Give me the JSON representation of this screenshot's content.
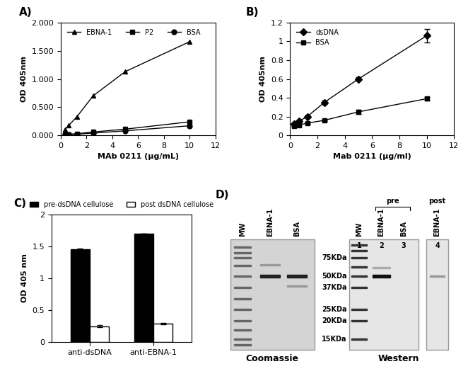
{
  "chart_data": [
    {
      "type": "line",
      "title": "A)",
      "x_label": "MAb 0211 (µg/mL)",
      "y_label": "OD 405nm",
      "x": [
        0.3125,
        0.625,
        1.25,
        2.5,
        5,
        10
      ],
      "series": [
        {
          "name": "EBNA-1",
          "color": "#000000",
          "marker": "triangle",
          "values": [
            0.1,
            0.18,
            0.33,
            0.7,
            1.13,
            1.66
          ]
        },
        {
          "name": "P2",
          "color": "#000000",
          "marker": "square",
          "values": [
            0.01,
            0.02,
            0.03,
            0.06,
            0.11,
            0.24
          ]
        },
        {
          "name": "BSA",
          "color": "#000000",
          "marker": "circle",
          "values": [
            0.01,
            0.01,
            0.02,
            0.04,
            0.08,
            0.17
          ]
        }
      ],
      "xlim": [
        0,
        12
      ],
      "xticks": [
        0,
        2,
        4,
        6,
        8,
        10,
        12
      ],
      "ylim": [
        0,
        2
      ],
      "yticks": [
        {
          "value": 0,
          "label": "0.000"
        },
        {
          "value": 0.5,
          "label": "0.500"
        },
        {
          "value": 1,
          "label": "1.000"
        },
        {
          "value": 1.5,
          "label": "1.500"
        },
        {
          "value": 2,
          "label": "2.000"
        }
      ],
      "legend": "upper left"
    },
    {
      "type": "line",
      "title": "B)",
      "x_label": "Mab 0211 (µg/ml)",
      "y_label": "OD 405nm",
      "x": [
        0.3125,
        0.625,
        1.25,
        2.5,
        5,
        10
      ],
      "series": [
        {
          "name": "dsDNA",
          "color": "#000000",
          "marker": "diamond",
          "values": [
            0.12,
            0.15,
            0.2,
            0.35,
            0.6,
            1.06
          ],
          "errors": [
            0.01,
            0.01,
            0.01,
            0.02,
            0.02,
            0.07
          ]
        },
        {
          "name": "BSA",
          "color": "#000000",
          "marker": "square",
          "values": [
            0.1,
            0.11,
            0.13,
            0.16,
            0.25,
            0.39
          ],
          "errors": [
            0.01,
            0.01,
            0.01,
            0.01,
            0.02,
            0.02
          ]
        }
      ],
      "xlim": [
        0,
        12
      ],
      "xticks": [
        0,
        2,
        4,
        6,
        8,
        10,
        12
      ],
      "ylim": [
        0,
        1.2
      ],
      "yticks": [
        0,
        0.2,
        0.4,
        0.6,
        0.8,
        1,
        1.2
      ],
      "legend": "upper left"
    },
    {
      "type": "bar",
      "title": "C)",
      "y_label": "OD 405 nm",
      "categories": [
        "anti-dsDNA",
        "anti-EBNA-1"
      ],
      "series": [
        {
          "name": "pre-dsDNA cellulose",
          "color": "#000000",
          "values": [
            1.45,
            1.7
          ],
          "errors": [
            0.02,
            0.0
          ]
        },
        {
          "name": "post dsDNA cellulose",
          "color": "#ffffff",
          "values": [
            0.25,
            0.29
          ],
          "errors": [
            0.02,
            0.01
          ]
        }
      ],
      "ylim": [
        0,
        2
      ],
      "yticks": [
        0,
        0.5,
        1,
        1.5,
        2
      ],
      "legend": "top"
    }
  ],
  "gel": {
    "title": "D)",
    "mw_labels": [
      "75KDa",
      "50KDa",
      "37KDa",
      "25KDa",
      "20KDa",
      "15KDa"
    ],
    "coomassie": {
      "caption": "Coomassie",
      "lanes": [
        "MW",
        "EBNA-1",
        "BSA"
      ]
    },
    "western": {
      "caption": "Western",
      "lanes": [
        "MW",
        "EBNA-1",
        "BSA",
        "EBNA-1"
      ],
      "lane_numbers": [
        "1",
        "2",
        "3",
        "4"
      ],
      "groups": [
        {
          "label": "pre",
          "lanes": [
            2,
            3
          ]
        },
        {
          "label": "post",
          "lanes": [
            4
          ]
        }
      ]
    }
  }
}
